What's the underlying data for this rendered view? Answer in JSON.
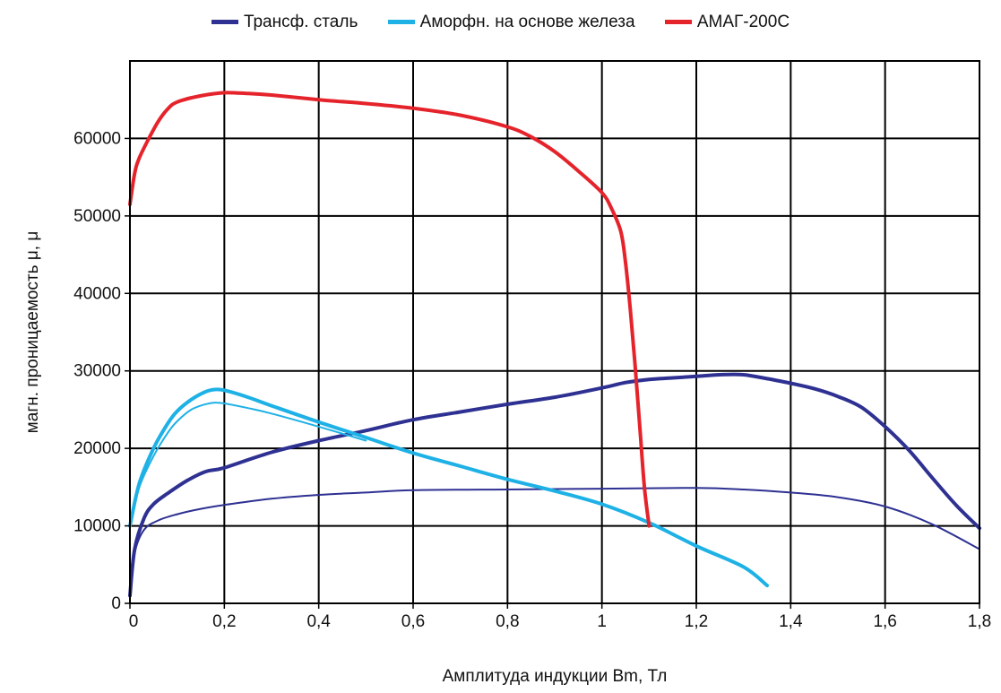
{
  "chart_data": {
    "type": "line",
    "xlabel": "Амплитуда индукции Вm, Тл",
    "ylabel": "магн. проницаемость μ, μ",
    "xlim": [
      0,
      1.8
    ],
    "ylim": [
      0,
      70000
    ],
    "x_ticks": [
      "0",
      "0,2",
      "0,4",
      "0,6",
      "0,8",
      "1",
      "1,2",
      "1,4",
      "1,6",
      "1,8"
    ],
    "y_ticks": [
      "0",
      "10000",
      "20000",
      "30000",
      "40000",
      "50000",
      "60000"
    ],
    "x_tick_values": [
      0,
      0.2,
      0.4,
      0.6,
      0.8,
      1.0,
      1.2,
      1.4,
      1.6,
      1.8
    ],
    "y_tick_values": [
      0,
      10000,
      20000,
      30000,
      40000,
      50000,
      60000
    ],
    "grid": true,
    "legend_position": "top-center",
    "series": [
      {
        "name": "Трансф. сталь",
        "color": "#2e3192",
        "style": "thick",
        "x": [
          0,
          0.01,
          0.03,
          0.05,
          0.08,
          0.12,
          0.16,
          0.2,
          0.3,
          0.4,
          0.5,
          0.6,
          0.7,
          0.8,
          0.9,
          1.0,
          1.05,
          1.1,
          1.15,
          1.2,
          1.25,
          1.3,
          1.35,
          1.4,
          1.45,
          1.5,
          1.55,
          1.6,
          1.65,
          1.7,
          1.75,
          1.8
        ],
        "y": [
          1000,
          7000,
          11000,
          12800,
          14200,
          15800,
          17000,
          17500,
          19500,
          21000,
          22300,
          23700,
          24700,
          25700,
          26600,
          27800,
          28500,
          28900,
          29100,
          29300,
          29500,
          29500,
          29000,
          28400,
          27700,
          26700,
          25300,
          22800,
          19800,
          16200,
          12700,
          9700
        ]
      },
      {
        "name": "",
        "color": "#2e3192",
        "style": "thin",
        "x": [
          0,
          0.01,
          0.03,
          0.06,
          0.1,
          0.15,
          0.2,
          0.3,
          0.4,
          0.5,
          0.6,
          0.8,
          1.0,
          1.2,
          1.3,
          1.4,
          1.5,
          1.6,
          1.7,
          1.8
        ],
        "y": [
          1000,
          6500,
          9500,
          10700,
          11500,
          12200,
          12700,
          13500,
          14000,
          14300,
          14600,
          14700,
          14800,
          14900,
          14700,
          14300,
          13700,
          12500,
          10200,
          7000
        ]
      },
      {
        "name": "Аморфн. на основе железа",
        "color": "#1eb1e6",
        "style": "thick",
        "x": [
          0,
          0.02,
          0.05,
          0.08,
          0.1,
          0.13,
          0.16,
          0.18,
          0.2,
          0.25,
          0.3,
          0.4,
          0.5,
          0.6,
          0.7,
          0.8,
          0.9,
          1.0,
          1.1,
          1.2,
          1.3,
          1.35
        ],
        "y": [
          10000,
          15500,
          20000,
          23200,
          24800,
          26300,
          27300,
          27600,
          27500,
          26600,
          25500,
          23400,
          21400,
          19400,
          17700,
          16000,
          14500,
          12800,
          10400,
          7400,
          4700,
          2300
        ]
      },
      {
        "name": "",
        "color": "#1eb1e6",
        "style": "thin",
        "x": [
          0,
          0.02,
          0.05,
          0.08,
          0.1,
          0.13,
          0.16,
          0.18,
          0.2,
          0.25,
          0.3,
          0.4,
          0.5
        ],
        "y": [
          10000,
          15000,
          19000,
          22000,
          23500,
          25000,
          25700,
          25900,
          25800,
          25200,
          24500,
          22800,
          21000
        ]
      },
      {
        "name": "АМАГ-200С",
        "color": "#e5232b",
        "style": "thick",
        "x": [
          0,
          0.01,
          0.02,
          0.04,
          0.06,
          0.08,
          0.1,
          0.15,
          0.2,
          0.25,
          0.3,
          0.4,
          0.5,
          0.6,
          0.7,
          0.8,
          0.85,
          0.9,
          0.95,
          1.0,
          1.02,
          1.04,
          1.05,
          1.06,
          1.07,
          1.08,
          1.09,
          1.1
        ],
        "y": [
          51500,
          55500,
          57500,
          60000,
          62200,
          63800,
          64700,
          65500,
          65900,
          65800,
          65600,
          65000,
          64500,
          63900,
          63000,
          61500,
          60200,
          58300,
          55800,
          53000,
          51000,
          48000,
          44000,
          38000,
          31000,
          23000,
          15000,
          10000
        ]
      }
    ]
  }
}
